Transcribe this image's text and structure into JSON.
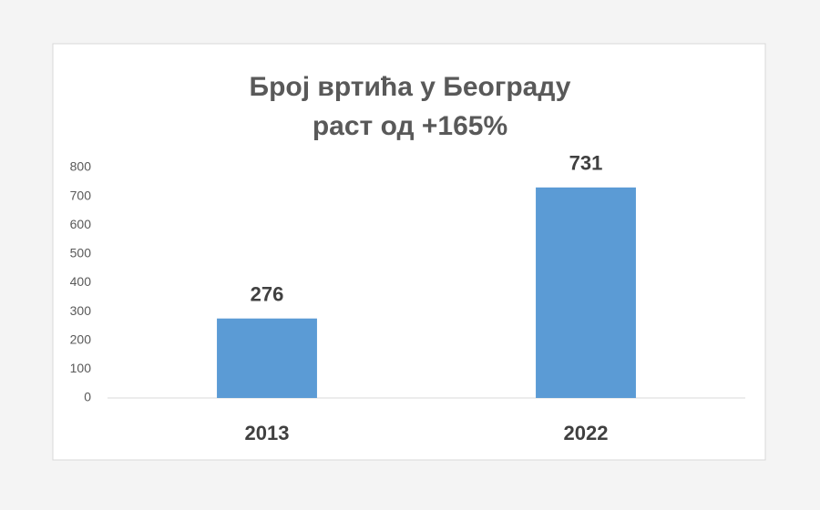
{
  "chart_data": {
    "type": "bar",
    "title": "Број вртића у Београду",
    "subtitle": "раст од +165%",
    "categories": [
      "2013",
      "2022"
    ],
    "values": [
      276,
      731
    ],
    "color": "#5b9bd5",
    "ylim": [
      0,
      800
    ],
    "yticks": [
      0,
      100,
      200,
      300,
      400,
      500,
      600,
      700,
      800
    ],
    "grid": false
  }
}
